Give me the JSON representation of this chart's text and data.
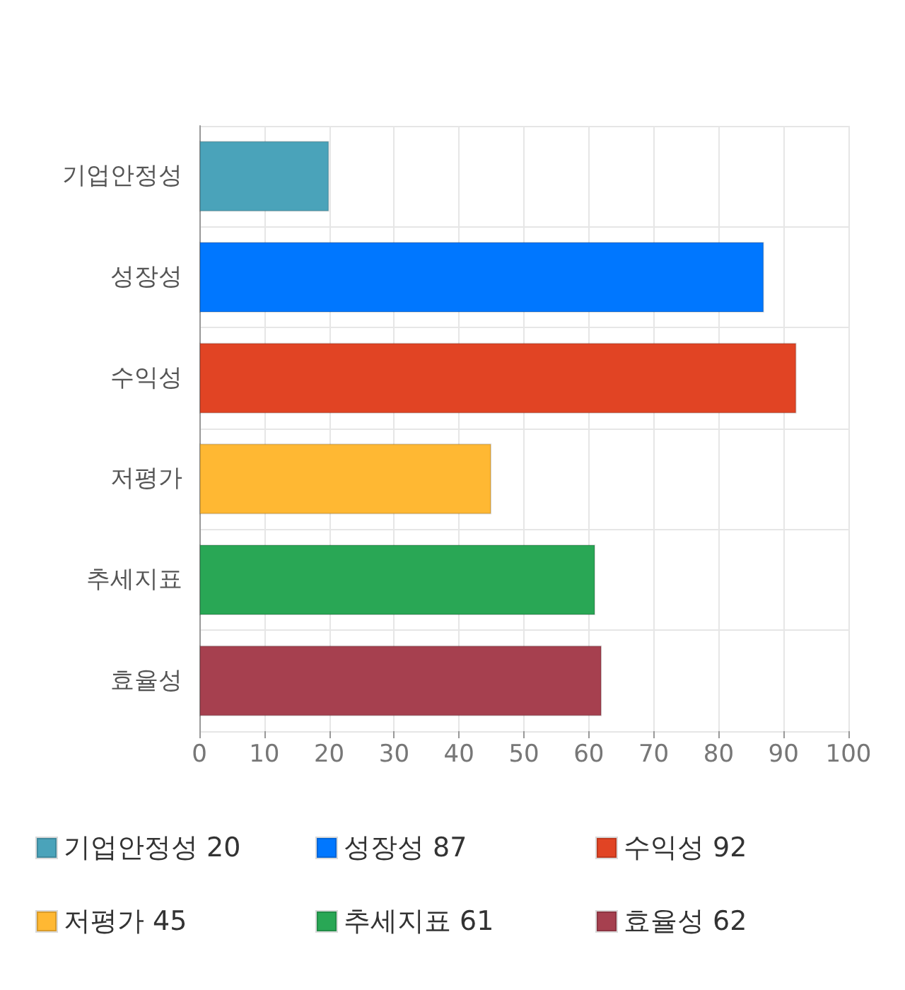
{
  "chart_data": {
    "type": "bar",
    "orientation": "horizontal",
    "categories": [
      "기업안정성",
      "성장성",
      "수익성",
      "저평가",
      "추세지표",
      "효율성"
    ],
    "series": [
      {
        "name": "기업안정성 20",
        "color": "#4aa3ba",
        "values": [
          20,
          null,
          null,
          null,
          null,
          null
        ]
      },
      {
        "name": "성장성 87",
        "color": "#0077ff",
        "values": [
          null,
          87,
          null,
          null,
          null,
          null
        ]
      },
      {
        "name": "수익성 92",
        "color": "#e14424",
        "values": [
          null,
          null,
          92,
          null,
          null,
          null
        ]
      },
      {
        "name": "저평가 45",
        "color": "#ffb833",
        "values": [
          null,
          null,
          null,
          45,
          null,
          null
        ]
      },
      {
        "name": "추세지표 61",
        "color": "#29a755",
        "values": [
          null,
          null,
          null,
          null,
          61,
          null
        ]
      },
      {
        "name": "효율성 62",
        "color": "#a6404f",
        "values": [
          null,
          null,
          null,
          null,
          null,
          62
        ]
      }
    ],
    "xlim": [
      0,
      100
    ],
    "xticks": [
      0,
      10,
      20,
      30,
      40,
      50,
      60,
      70,
      80,
      90,
      100
    ],
    "grid": true,
    "legend": "bottom"
  }
}
